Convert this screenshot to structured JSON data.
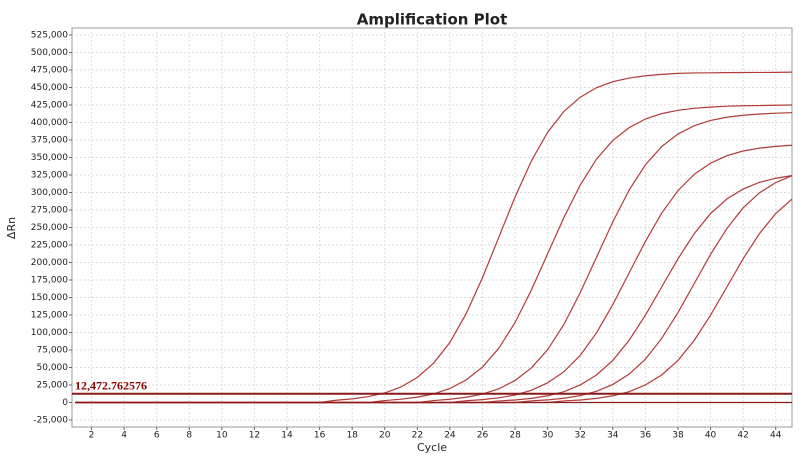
{
  "chart_data": {
    "type": "line",
    "title": "Amplification Plot",
    "x_label": "Cycle",
    "y_label": "ΔRn",
    "x": [
      1,
      2,
      3,
      4,
      5,
      6,
      7,
      8,
      9,
      10,
      11,
      12,
      13,
      14,
      15,
      16,
      17,
      18,
      19,
      20,
      21,
      22,
      23,
      24,
      25,
      26,
      27,
      28,
      29,
      30,
      31,
      32,
      33,
      34,
      35,
      36,
      37,
      38,
      39,
      40,
      41,
      42,
      43,
      44,
      45
    ],
    "series": [
      {
        "color": "#b03a3a",
        "values": [
          0,
          0,
          0,
          0,
          0,
          0,
          0,
          0,
          0,
          0,
          0,
          0,
          0,
          0,
          0,
          0,
          3200,
          5200,
          8500,
          13700,
          22200,
          35900,
          56200,
          85900,
          127000,
          178400,
          236000,
          293600,
          345000,
          386100,
          415800,
          436100,
          449800,
          458300,
          463500,
          466800,
          468700,
          470200,
          470800,
          471000,
          471200,
          471400,
          471500,
          471600,
          472000
        ]
      },
      {
        "color": "#b03a3a",
        "values": [
          0,
          0,
          0,
          0,
          0,
          0,
          0,
          0,
          0,
          0,
          0,
          0,
          0,
          0,
          0,
          0,
          0,
          0,
          0,
          2800,
          4700,
          7700,
          12300,
          20000,
          32300,
          50600,
          77400,
          114300,
          160700,
          212500,
          264400,
          310700,
          347700,
          374400,
          392700,
          405000,
          412700,
          417400,
          420300,
          422000,
          423300,
          423900,
          424200,
          424600,
          425000
        ]
      },
      {
        "color": "#b03a3a",
        "values": [
          0,
          0,
          0,
          0,
          0,
          0,
          0,
          0,
          0,
          0,
          0,
          0,
          0,
          0,
          0,
          0,
          0,
          0,
          0,
          0,
          0,
          0,
          2800,
          4600,
          7500,
          12000,
          19500,
          31500,
          49400,
          75500,
          111600,
          156900,
          207500,
          258100,
          303400,
          339500,
          365600,
          383500,
          395500,
          403000,
          407500,
          410400,
          412100,
          413300,
          414000
        ]
      },
      {
        "color": "#b03a3a",
        "values": [
          0,
          0,
          0,
          0,
          0,
          0,
          0,
          0,
          0,
          0,
          0,
          0,
          0,
          0,
          0,
          0,
          0,
          0,
          0,
          0,
          0,
          0,
          0,
          0,
          2500,
          4100,
          6700,
          10700,
          17400,
          28100,
          44000,
          67300,
          99500,
          139900,
          185000,
          230100,
          270500,
          302700,
          326000,
          341900,
          352600,
          359300,
          363300,
          365900,
          367500
        ]
      },
      {
        "color": "#b03a3a",
        "values": [
          0,
          0,
          0,
          0,
          0,
          0,
          0,
          0,
          0,
          0,
          0,
          0,
          0,
          0,
          0,
          0,
          0,
          0,
          0,
          0,
          0,
          0,
          0,
          0,
          0,
          0,
          2200,
          3600,
          5900,
          9600,
          15500,
          25100,
          39300,
          60100,
          88800,
          124700,
          165000,
          205300,
          241200,
          269900,
          290700,
          304900,
          314500,
          320400,
          324100
        ]
      },
      {
        "color": "#b03a3a",
        "values": [
          0,
          0,
          0,
          0,
          0,
          0,
          0,
          0,
          0,
          0,
          0,
          0,
          0,
          0,
          0,
          0,
          0,
          0,
          0,
          0,
          0,
          0,
          0,
          0,
          0,
          0,
          0,
          0,
          2300,
          3700,
          6100,
          9900,
          16000,
          25800,
          40500,
          61900,
          91500,
          128500,
          170000,
          211500,
          248500,
          278100,
          299500,
          314100,
          324000
        ]
      },
      {
        "color": "#b03a3a",
        "values": [
          0,
          0,
          0,
          0,
          0,
          0,
          0,
          0,
          0,
          0,
          0,
          0,
          0,
          0,
          0,
          0,
          0,
          0,
          0,
          0,
          0,
          0,
          0,
          0,
          0,
          0,
          0,
          0,
          0,
          0,
          2200,
          3600,
          5900,
          9600,
          15500,
          25100,
          39300,
          60100,
          88800,
          124700,
          165000,
          205300,
          241200,
          269900,
          290700
        ]
      },
      {
        "color": "#8b1a1a",
        "values": [
          0,
          0,
          0,
          0,
          0,
          0,
          0,
          0,
          0,
          0,
          0,
          0,
          0,
          0,
          0,
          0,
          0,
          0,
          0,
          0,
          0,
          0,
          0,
          0,
          0,
          0,
          0,
          0,
          0,
          0,
          0,
          0,
          0,
          0,
          0,
          0,
          0,
          0,
          0,
          0,
          0,
          0,
          0,
          0,
          0
        ]
      }
    ],
    "threshold": {
      "value": 12472.762576,
      "label": "12,472.762576"
    },
    "threshold_color": "#8b1a1a",
    "xlim": [
      0.8,
      45
    ],
    "xticks": [
      2,
      4,
      6,
      8,
      10,
      12,
      14,
      16,
      18,
      20,
      22,
      24,
      26,
      28,
      30,
      32,
      34,
      36,
      38,
      40,
      42,
      44
    ],
    "ylim": [
      -35000,
      535000
    ],
    "yticks": [
      {
        "value": -25000,
        "label": "-25,000"
      },
      0,
      {
        "value": 25000,
        "label": "25,000"
      },
      {
        "value": 50000,
        "label": "50,000"
      },
      {
        "value": 75000,
        "label": "75,000"
      },
      {
        "value": 100000,
        "label": "100,000"
      },
      {
        "value": 125000,
        "label": "125,000"
      },
      {
        "value": 150000,
        "label": "150,000"
      },
      {
        "value": 175000,
        "label": "175,000"
      },
      {
        "value": 200000,
        "label": "200,000"
      },
      {
        "value": 225000,
        "label": "225,000"
      },
      {
        "value": 250000,
        "label": "250,000"
      },
      {
        "value": 275000,
        "label": "275,000"
      },
      {
        "value": 300000,
        "label": "300,000"
      },
      {
        "value": 325000,
        "label": "325,000"
      },
      {
        "value": 350000,
        "label": "350,000"
      },
      {
        "value": 375000,
        "label": "375,000"
      },
      {
        "value": 400000,
        "label": "400,000"
      },
      {
        "value": 425000,
        "label": "425,000"
      },
      {
        "value": 450000,
        "label": "450,000"
      },
      {
        "value": 475000,
        "label": "475,000"
      },
      {
        "value": 500000,
        "label": "500,000"
      },
      {
        "value": 525000,
        "label": "525,000"
      }
    ],
    "grid": true
  }
}
